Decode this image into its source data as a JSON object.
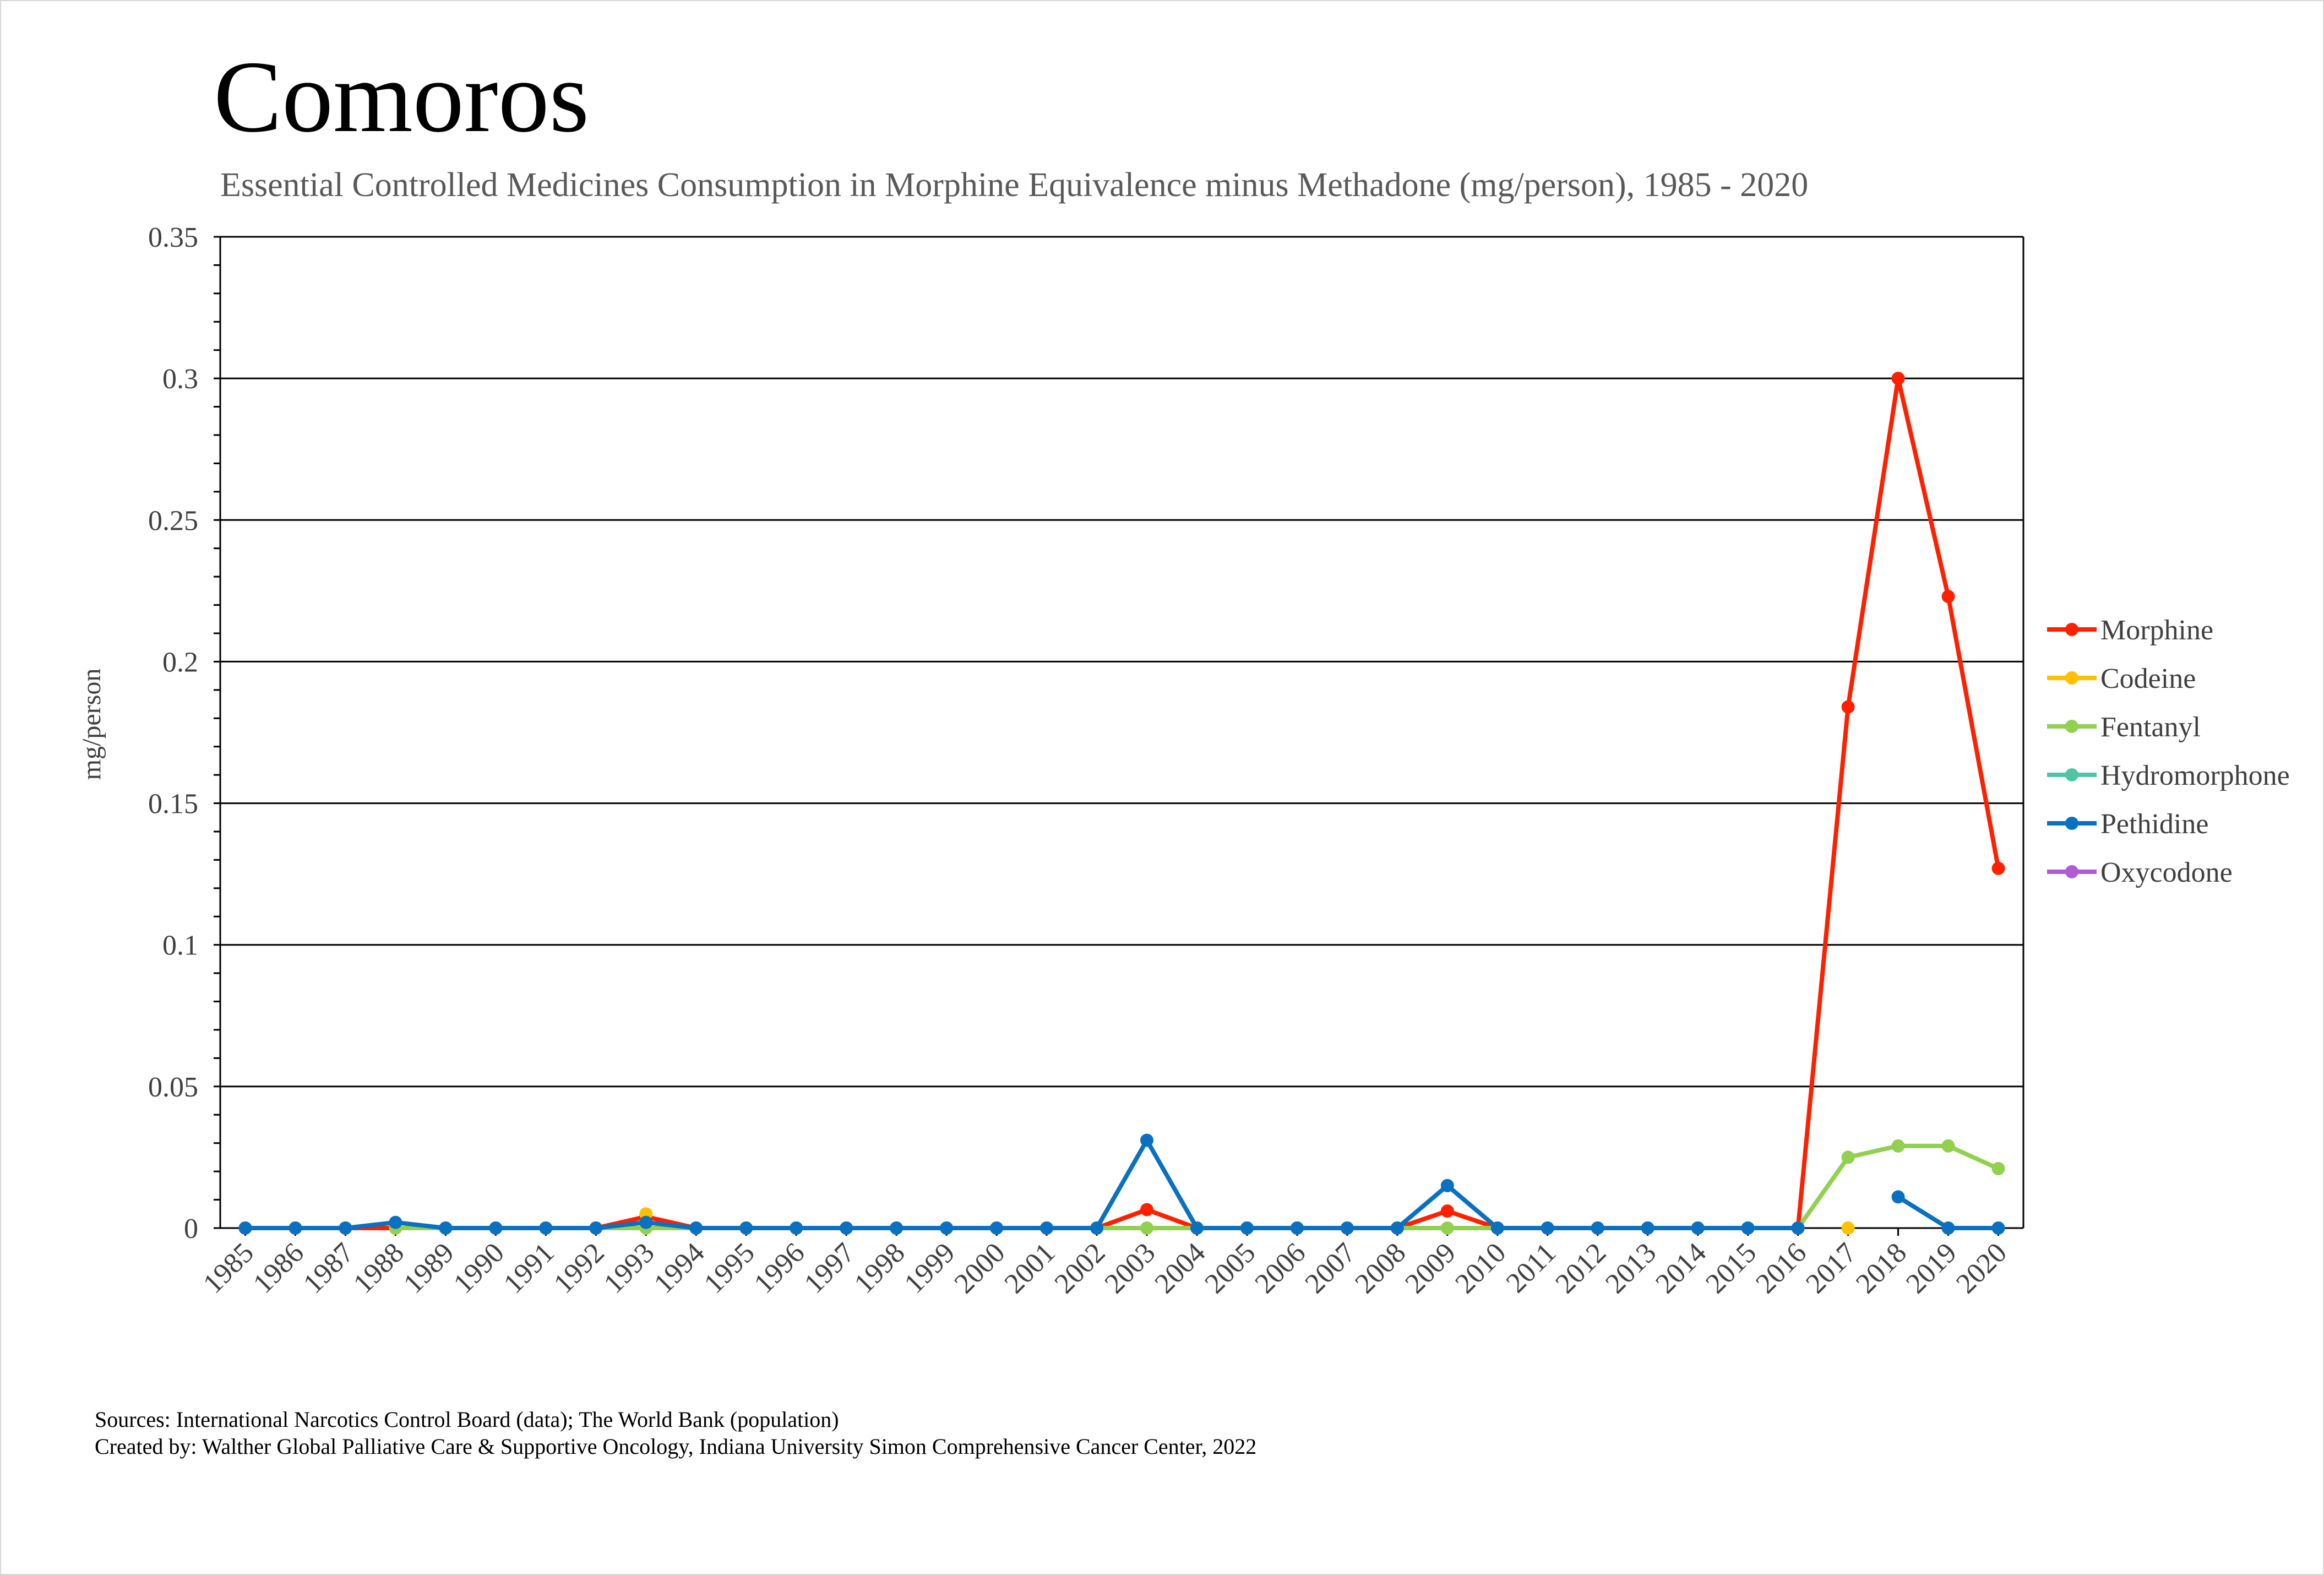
{
  "chart_data": {
    "type": "line",
    "title": "Comoros",
    "subtitle": "Essential Controlled Medicines Consumption in Morphine Equivalence minus Methadone (mg/person), 1985 - 2020",
    "xlabel": "",
    "ylabel": "mg/person",
    "ylim": [
      0,
      0.35
    ],
    "yticks": [
      "0",
      "0.05",
      "0.1",
      "0.15",
      "0.2",
      "0.25",
      "0.3",
      "0.35"
    ],
    "grid": "horizontal",
    "legend_position": "right",
    "categories": [
      "1985",
      "1986",
      "1987",
      "1988",
      "1989",
      "1990",
      "1991",
      "1992",
      "1993",
      "1994",
      "1995",
      "1996",
      "1997",
      "1998",
      "1999",
      "2000",
      "2001",
      "2002",
      "2003",
      "2004",
      "2005",
      "2006",
      "2007",
      "2008",
      "2009",
      "2010",
      "2011",
      "2012",
      "2013",
      "2014",
      "2015",
      "2016",
      "2017",
      "2018",
      "2019",
      "2020"
    ],
    "series": [
      {
        "name": "Morphine",
        "color": "#ff2000",
        "values": [
          0,
          0,
          0,
          0,
          0,
          0,
          0,
          0,
          0.004,
          0,
          0,
          0,
          0,
          0,
          0,
          0,
          0,
          0,
          0.0065,
          0,
          0,
          0,
          0,
          0,
          0.006,
          0,
          0,
          0,
          0,
          0,
          0,
          0,
          0.184,
          0.3,
          0.223,
          0.127
        ]
      },
      {
        "name": "Codeine",
        "color": "#ffc000",
        "values": [
          null,
          null,
          null,
          null,
          null,
          null,
          null,
          null,
          0.005,
          null,
          null,
          null,
          null,
          null,
          null,
          null,
          null,
          null,
          null,
          null,
          null,
          null,
          null,
          null,
          null,
          null,
          null,
          null,
          null,
          null,
          null,
          null,
          0,
          null,
          null,
          null
        ]
      },
      {
        "name": "Fentanyl",
        "color": "#92d050",
        "values": [
          null,
          null,
          null,
          0,
          0,
          null,
          null,
          0,
          0,
          0,
          null,
          null,
          null,
          null,
          null,
          null,
          null,
          0,
          0,
          0,
          null,
          null,
          null,
          0,
          0,
          0,
          null,
          null,
          null,
          null,
          null,
          0,
          0.025,
          0.029,
          0.029,
          0.021
        ]
      },
      {
        "name": "Hydromorphone",
        "color": "#4fc6a3",
        "values": [
          null,
          null,
          null,
          null,
          null,
          null,
          null,
          null,
          null,
          null,
          null,
          null,
          null,
          null,
          null,
          null,
          null,
          null,
          null,
          null,
          null,
          null,
          null,
          null,
          null,
          null,
          null,
          null,
          null,
          null,
          null,
          null,
          null,
          null,
          null,
          null
        ]
      },
      {
        "name": "Pethidine",
        "color": "#0a70c0",
        "values": [
          0,
          0,
          0,
          0.002,
          0,
          0,
          0,
          0,
          0.002,
          0,
          0,
          0,
          0,
          0,
          0,
          0,
          0,
          0,
          0.031,
          0,
          0,
          0,
          0,
          0,
          0.015,
          0,
          0,
          0,
          0,
          0,
          0,
          0,
          null,
          0.011,
          0,
          0
        ]
      },
      {
        "name": "Oxycodone",
        "color": "#b05ad6",
        "values": [
          null,
          null,
          null,
          null,
          null,
          null,
          null,
          null,
          null,
          null,
          null,
          null,
          null,
          null,
          null,
          null,
          null,
          null,
          null,
          null,
          null,
          null,
          null,
          null,
          null,
          null,
          null,
          null,
          null,
          null,
          null,
          null,
          null,
          null,
          null,
          null
        ]
      }
    ]
  },
  "footer": {
    "sources": "Sources: International Narcotics Control Board (data); The World Bank (population)",
    "created_by": "Created by: Walther Global Palliative Care & Supportive Oncology, Indiana University Simon Comprehensive Cancer Center, 2022"
  }
}
